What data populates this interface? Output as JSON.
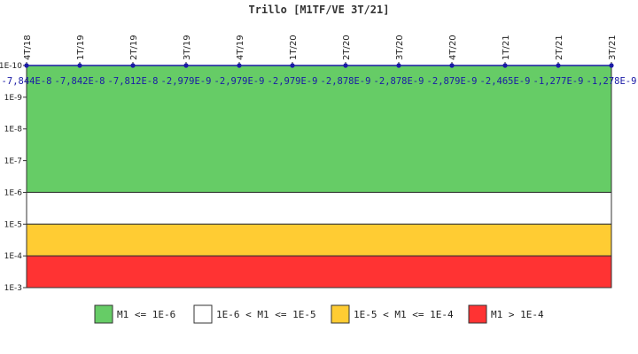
{
  "chart_data": {
    "type": "line",
    "title": "Trillo [M1TF/VE 3T/21]",
    "categories": [
      "4T/18",
      "1T/19",
      "2T/19",
      "3T/19",
      "4T/19",
      "1T/20",
      "2T/20",
      "3T/20",
      "4T/20",
      "1T/21",
      "2T/21",
      "3T/21"
    ],
    "value_labels": [
      "-7,844E-8",
      "-7,842E-8",
      "-7,812E-8",
      "-2,979E-9",
      "-2,979E-9",
      "-2,979E-9",
      "-2,878E-9",
      "-2,878E-9",
      "-2,879E-9",
      "-2,465E-9",
      "-1,277E-9",
      "-1,278E-9"
    ],
    "values": [
      -7.844e-08,
      -7.842e-08,
      -7.812e-08,
      -2.979e-09,
      -2.979e-09,
      -2.979e-09,
      -2.878e-09,
      -2.878e-09,
      -2.879e-09,
      -2.465e-09,
      -1.277e-09,
      -1.278e-09
    ],
    "y_scale": "log",
    "y_axis_reversed": true,
    "y_ticks": [
      "1E-10",
      "1E-9",
      "1E-8",
      "1E-7",
      "1E-6",
      "1E-5",
      "1E-4",
      "1E-3"
    ],
    "y_tick_exponents": [
      -10,
      -9,
      -8,
      -7,
      -6,
      -5,
      -4,
      -3
    ],
    "bands": [
      {
        "label": "M1 <= 1E-6",
        "from_exp": -10,
        "to_exp": -6,
        "color": "#66cc66"
      },
      {
        "label": "1E-6 < M1 <= 1E-5",
        "from_exp": -6,
        "to_exp": -5,
        "color": "#ffffff"
      },
      {
        "label": "1E-5 < M1 <= 1E-4",
        "from_exp": -5,
        "to_exp": -4,
        "color": "#ffcc33"
      },
      {
        "label": "M1 > 1E-4",
        "from_exp": -4,
        "to_exp": -3,
        "color": "#ff3333"
      }
    ],
    "line_color": "#1a1aa6"
  }
}
